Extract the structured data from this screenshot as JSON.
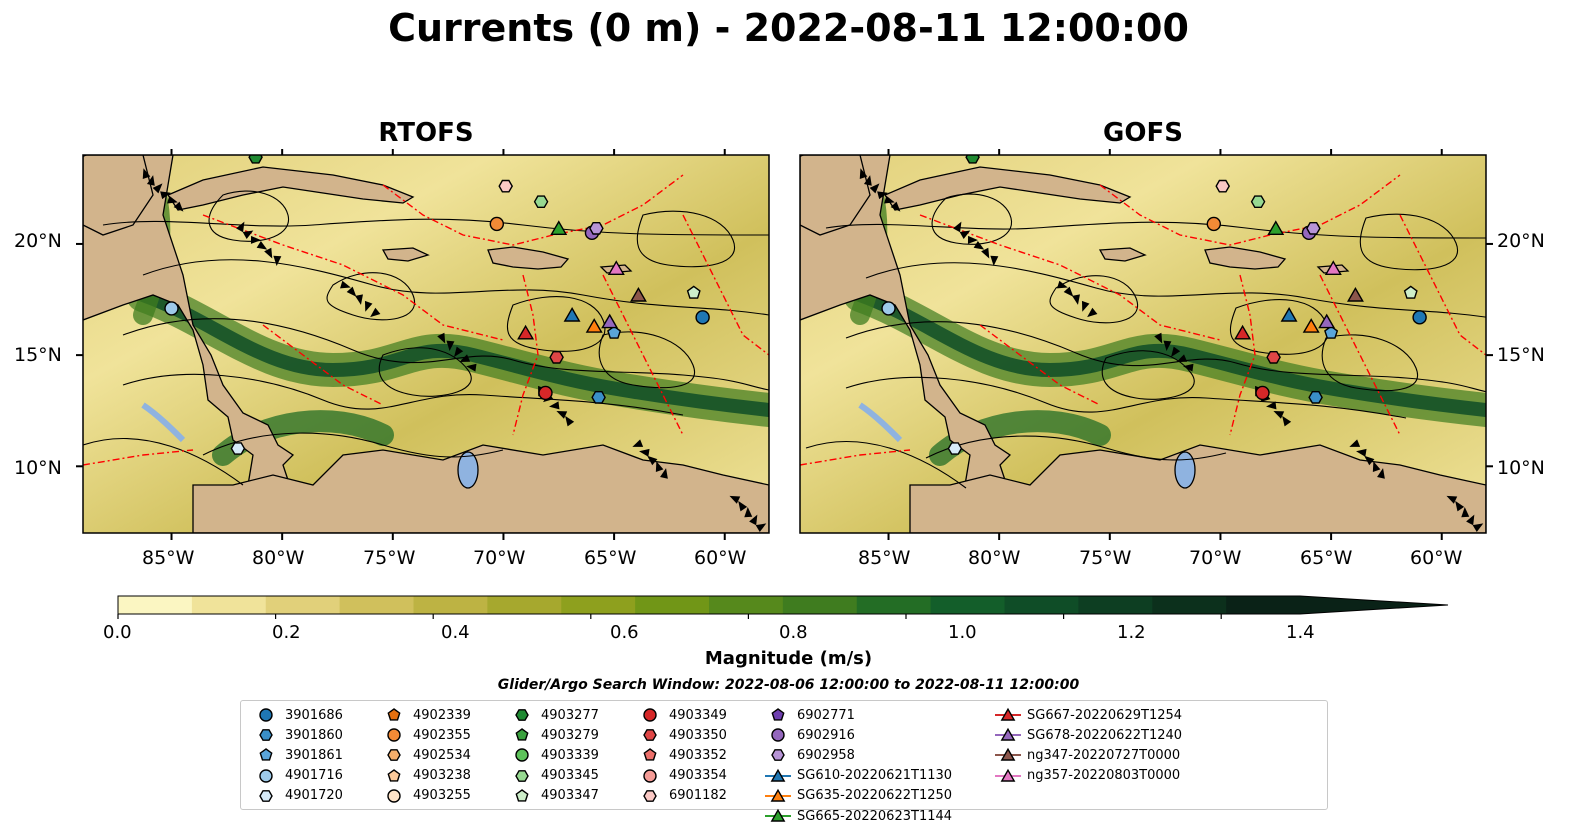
{
  "title": "Currents (0 m) - 2022-08-11 12:00:00",
  "panels": [
    {
      "name": "RTOFS"
    },
    {
      "name": "GOFS"
    }
  ],
  "map": {
    "lon_range": [
      -89,
      -58
    ],
    "lat_range": [
      7,
      24
    ],
    "lon_ticks": [
      "85°W",
      "80°W",
      "75°W",
      "70°W",
      "65°W",
      "60°W"
    ],
    "lat_ticks": [
      "20°N",
      "15°N",
      "10°N"
    ],
    "land_color": "#d2b48c",
    "coastline_color": "#000000",
    "eez_color": "#ff0000",
    "lake_color": "#8fb3e0",
    "streamline_color": "#000000"
  },
  "colorbar": {
    "label": "Magnitude (m/s)",
    "range": [
      0.0,
      1.5
    ],
    "extend": "max",
    "ticks": [
      "0.0",
      "0.2",
      "0.4",
      "0.6",
      "0.8",
      "1.0",
      "1.2",
      "1.4"
    ],
    "colors": [
      "#fbf6c2",
      "#f0e39a",
      "#e1d07a",
      "#d0c05c",
      "#bdb343",
      "#a6a82e",
      "#8ea01e",
      "#719617",
      "#56891c",
      "#3f7c1f",
      "#236d25",
      "#135e2a",
      "#0f4d27",
      "#0d3e22",
      "#0c301c",
      "#0a2217"
    ]
  },
  "search_window": "Glider/Argo Search Window: 2022-08-06 12:00:00 to 2022-08-11 12:00:00",
  "legend": {
    "columns": [
      [
        {
          "label": "3901686",
          "marker": "circle",
          "color": "#1f77b4"
        },
        {
          "label": "3901860",
          "marker": "hexagon",
          "color": "#3a8fc7"
        },
        {
          "label": "3901861",
          "marker": "pentagon",
          "color": "#5aa5da"
        },
        {
          "label": "4901716",
          "marker": "circle",
          "color": "#9ecae9"
        },
        {
          "label": "4901720",
          "marker": "hexagon",
          "color": "#d6eaf8"
        }
      ],
      [
        {
          "label": "4902339",
          "marker": "pentagon",
          "color": "#e6700f"
        },
        {
          "label": "4902355",
          "marker": "circle",
          "color": "#f28a36"
        },
        {
          "label": "4902534",
          "marker": "hexagon",
          "color": "#f6ae6b"
        },
        {
          "label": "4903238",
          "marker": "pentagon",
          "color": "#fbc99a"
        },
        {
          "label": "4903255",
          "marker": "circle",
          "color": "#fde3c8"
        }
      ],
      [
        {
          "label": "4903277",
          "marker": "hexagon",
          "color": "#1f8a32"
        },
        {
          "label": "4903279",
          "marker": "pentagon",
          "color": "#3aa13e"
        },
        {
          "label": "4903339",
          "marker": "circle",
          "color": "#5dc25a"
        },
        {
          "label": "4903345",
          "marker": "hexagon",
          "color": "#97d991"
        },
        {
          "label": "4903347",
          "marker": "pentagon",
          "color": "#cdeec9"
        }
      ],
      [
        {
          "label": "4903349",
          "marker": "circle",
          "color": "#d62728"
        },
        {
          "label": "4903350",
          "marker": "hexagon",
          "color": "#e04646"
        },
        {
          "label": "4903352",
          "marker": "pentagon",
          "color": "#ec6f6a"
        },
        {
          "label": "4903354",
          "marker": "circle",
          "color": "#f49b96"
        },
        {
          "label": "6901182",
          "marker": "hexagon",
          "color": "#fac8c4"
        }
      ],
      [
        {
          "label": "6902771",
          "marker": "pentagon",
          "color": "#6f3fb0"
        },
        {
          "label": "6902916",
          "marker": "circle",
          "color": "#9467bd"
        },
        {
          "label": "6902958",
          "marker": "hexagon",
          "color": "#b794d6"
        },
        {
          "label": "SG610-20220621T1130",
          "marker": "triangle",
          "color": "#1f77b4"
        },
        {
          "label": "SG635-20220622T1250",
          "marker": "triangle",
          "color": "#ff7f0e"
        },
        {
          "label": "SG665-20220623T1144",
          "marker": "triangle",
          "color": "#2ca02c"
        }
      ],
      [
        {
          "label": "SG667-20220629T1254",
          "marker": "triangle",
          "color": "#d62728"
        },
        {
          "label": "SG678-20220622T1240",
          "marker": "triangle",
          "color": "#9467bd"
        },
        {
          "label": "ng347-20220727T0000",
          "marker": "triangle",
          "color": "#8c564b"
        },
        {
          "label": "ng357-20220803T0000",
          "marker": "triangle",
          "color": "#e377c2"
        }
      ]
    ]
  }
}
